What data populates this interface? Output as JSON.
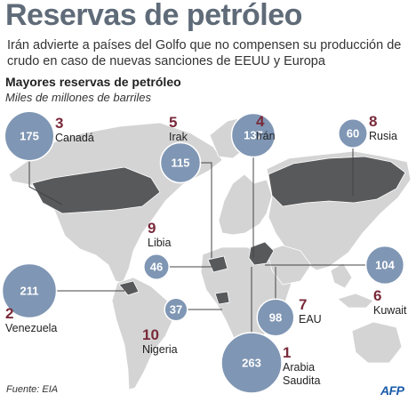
{
  "header": {
    "title": "Reservas de petróleo",
    "subtitle": "Irán advierte a países del  Golfo que no compensen su producción de crudo en caso de nuevas sanciones de EEUU y Europa",
    "chart_title": "Mayores reservas de petróleo",
    "chart_unit": "Miles de millones de barriles"
  },
  "footer": {
    "source": "Fuente: EIA",
    "logo_text": "AFP"
  },
  "colors": {
    "bubble": "#7f96b4",
    "bubble_stroke": "#ffffff",
    "highlight": "#58595b",
    "land": "#d4d4d4",
    "leader": "#444444",
    "rank": "#7a2a3a"
  },
  "chart_data": {
    "type": "bubble-map",
    "title": "Mayores reservas de petróleo",
    "subtitle": "Miles de millones de barriles",
    "entries": [
      {
        "rank": "1",
        "country": "Arabia Saudita",
        "value": 263
      },
      {
        "rank": "2",
        "country": "Venezuela",
        "value": 211
      },
      {
        "rank": "3",
        "country": "Canadá",
        "value": 175
      },
      {
        "rank": "4",
        "country": "Irán",
        "value": 137
      },
      {
        "rank": "5",
        "country": "Irak",
        "value": 115
      },
      {
        "rank": "6",
        "country": "Kuwait",
        "value": 104
      },
      {
        "rank": "7",
        "country": "EAU",
        "value": 98
      },
      {
        "rank": "8",
        "country": "Rusia",
        "value": 60
      },
      {
        "rank": "9",
        "country": "Libia",
        "value": 46
      },
      {
        "rank": "10",
        "country": "Nigeria",
        "value": 37
      }
    ]
  }
}
